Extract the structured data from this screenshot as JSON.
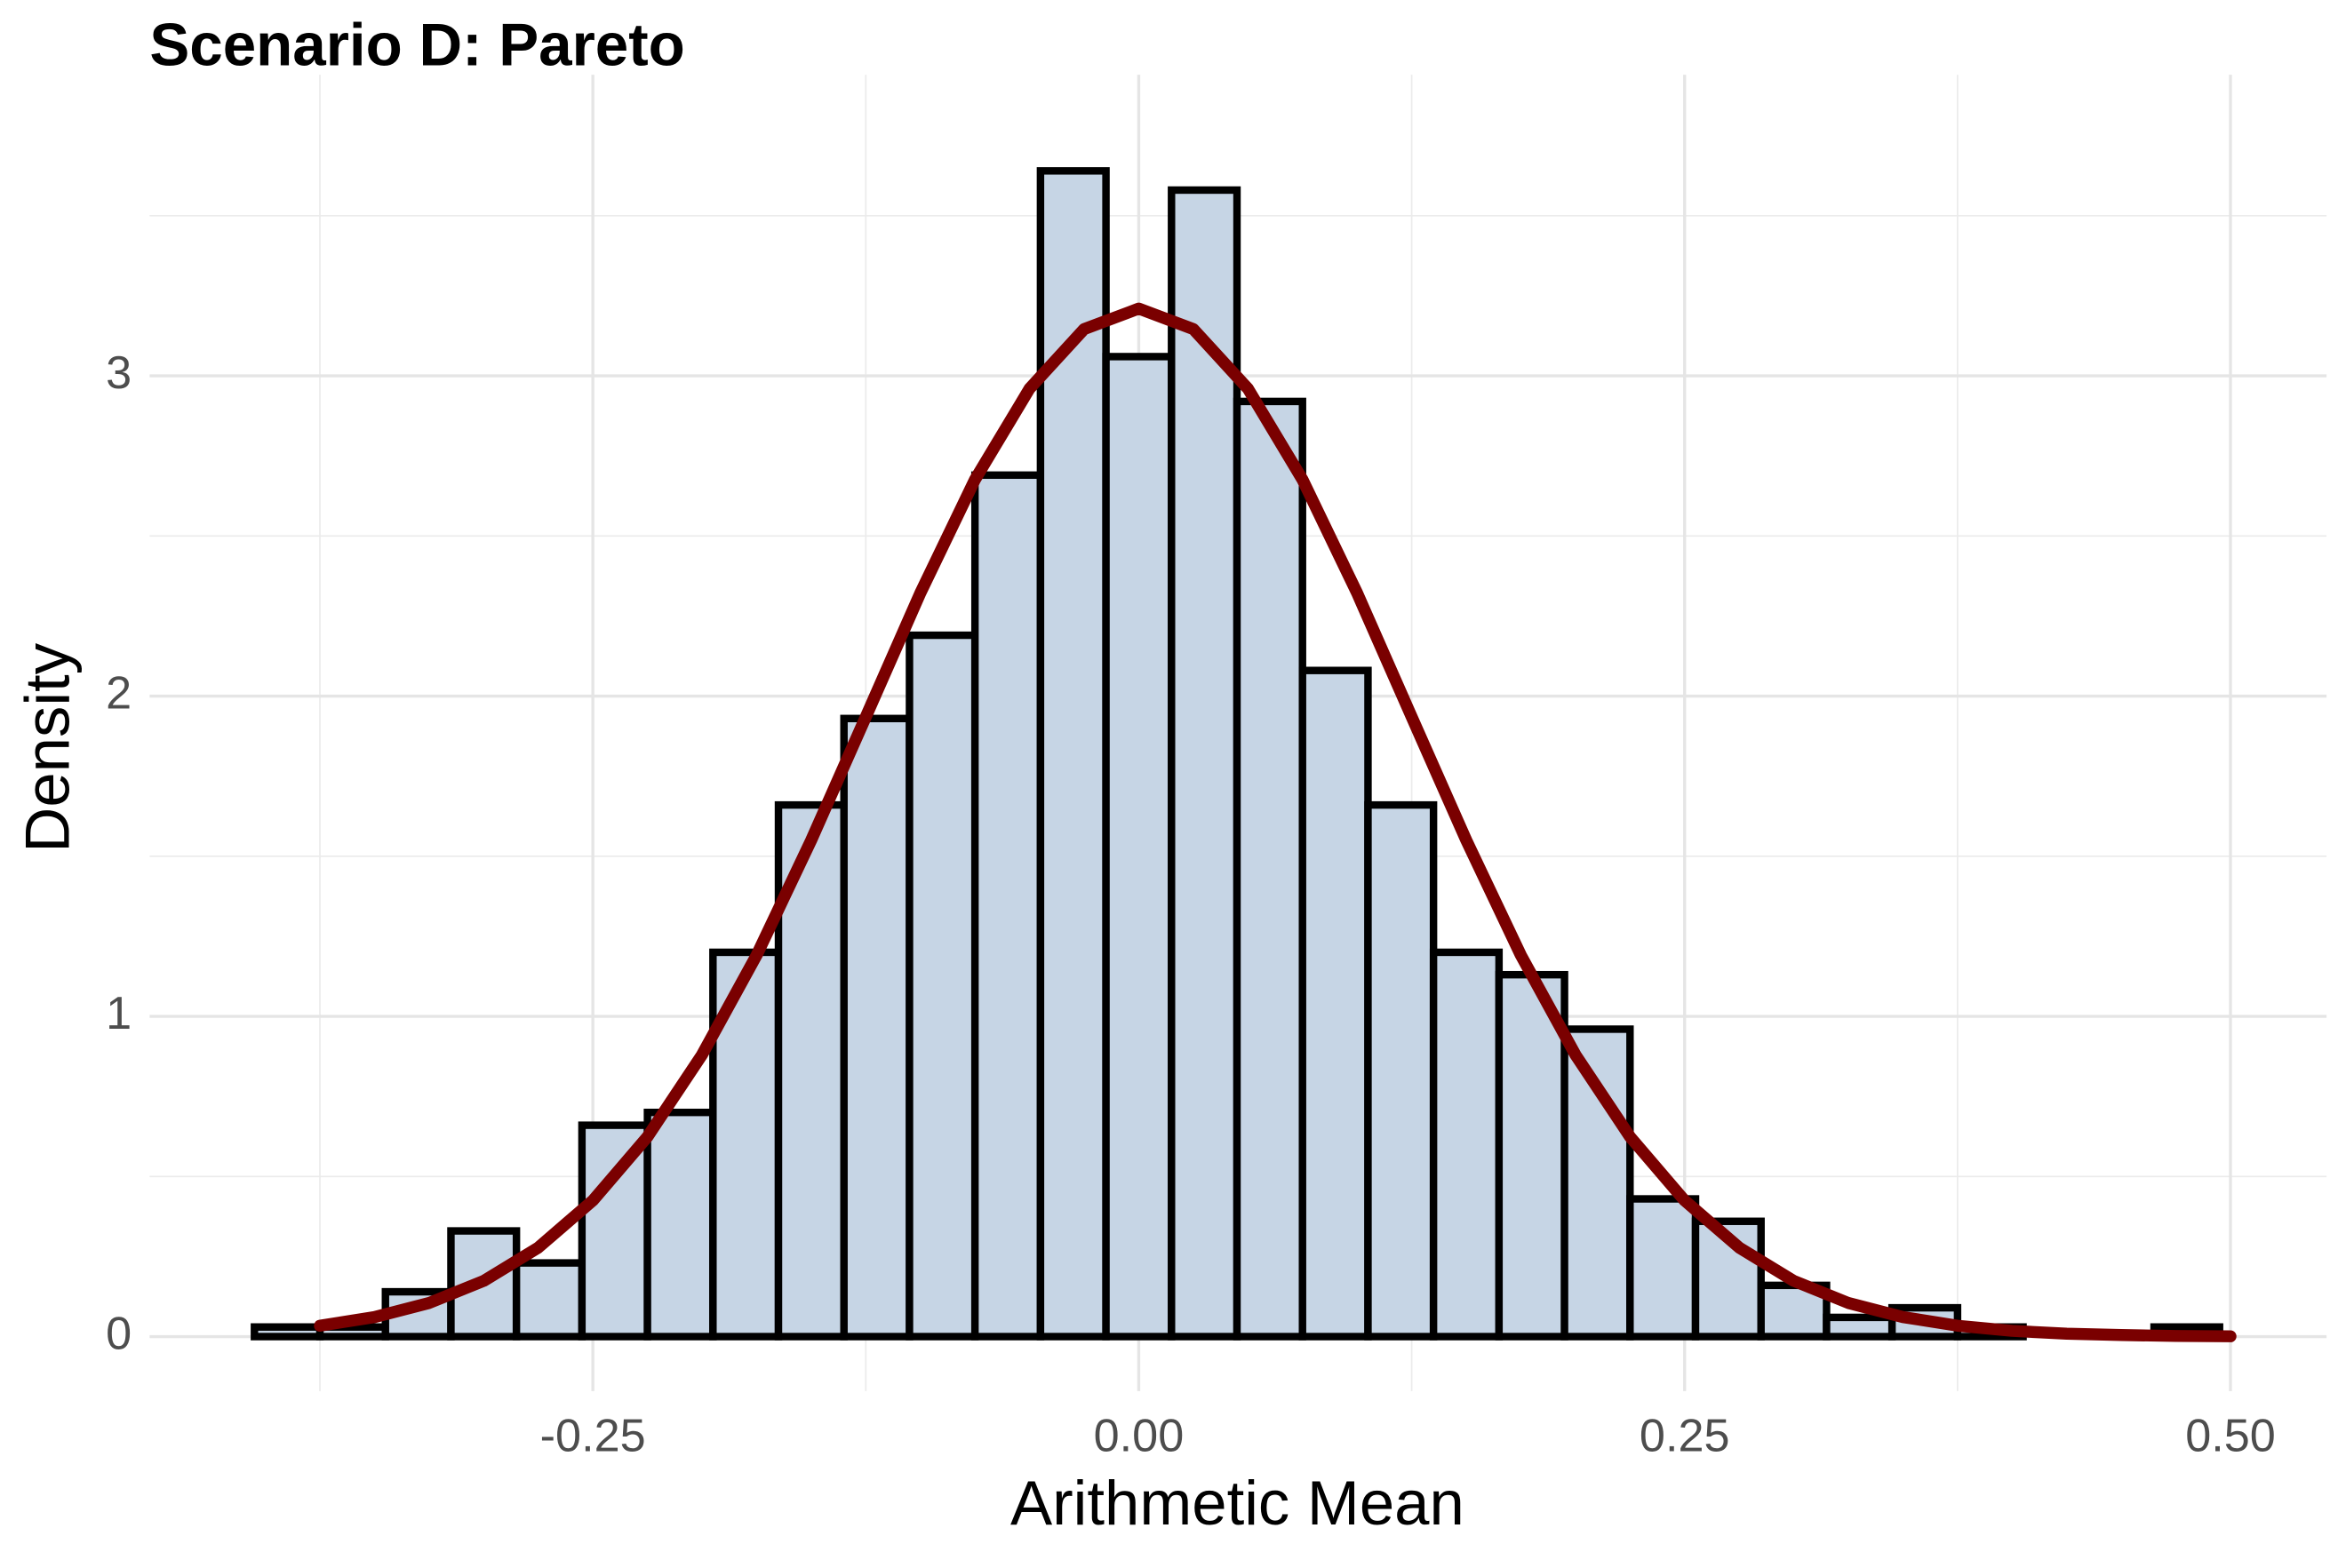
{
  "chart_data": {
    "type": "histogram",
    "title": "Scenario D: Pareto",
    "xlabel": "Arithmetic Mean",
    "ylabel": "Density",
    "bins": [
      -0.405,
      -0.375,
      -0.345,
      -0.315,
      -0.285,
      -0.255,
      -0.225,
      -0.195,
      -0.165,
      -0.135,
      -0.105,
      -0.075,
      -0.045,
      -0.015,
      0.015,
      0.045,
      0.075,
      0.105,
      0.135,
      0.165,
      0.195,
      0.225,
      0.255,
      0.285,
      0.315,
      0.345,
      0.375,
      0.405,
      0.435,
      0.465,
      0.495
    ],
    "values": [
      0.03,
      0.03,
      0.14,
      0.33,
      0.23,
      0.66,
      0.7,
      1.2,
      1.66,
      1.93,
      2.19,
      2.69,
      3.64,
      3.06,
      3.58,
      2.92,
      2.08,
      1.66,
      1.2,
      1.13,
      0.96,
      0.43,
      0.36,
      0.16,
      0.06,
      0.09,
      0.03,
      0,
      0,
      0.03
    ],
    "color": "#c6d5e5",
    "edgecolor": "#000000",
    "curve": {
      "color": "#7a0000",
      "x": [
        -0.375,
        -0.35,
        -0.325,
        -0.3,
        -0.275,
        -0.25,
        -0.225,
        -0.2,
        -0.175,
        -0.15,
        -0.125,
        -0.1,
        -0.075,
        -0.05,
        -0.025,
        0,
        0.025,
        0.05,
        0.075,
        0.1,
        0.125,
        0.15,
        0.175,
        0.2,
        0.225,
        0.25,
        0.275,
        0.3,
        0.325,
        0.35,
        0.375,
        0.4,
        0.425,
        0.45,
        0.475,
        0.5
      ],
      "values": [
        0.034,
        0.061,
        0.105,
        0.174,
        0.278,
        0.425,
        0.624,
        0.88,
        1.191,
        1.55,
        1.935,
        2.322,
        2.676,
        2.96,
        3.146,
        3.21,
        3.146,
        2.96,
        2.676,
        2.322,
        1.935,
        1.55,
        1.191,
        0.88,
        0.624,
        0.425,
        0.278,
        0.174,
        0.105,
        0.061,
        0.034,
        0.018,
        0.009,
        0.005,
        0.002,
        0.001
      ]
    },
    "xlim": [
      -0.453,
      0.544
    ],
    "ylim": [
      -0.17,
      3.94
    ],
    "xticks": [
      {
        "value": -0.25,
        "label": "-0.25"
      },
      {
        "value": 0,
        "label": "0.00"
      },
      {
        "value": 0.25,
        "label": "0.25"
      },
      {
        "value": 0.5,
        "label": "0.50"
      }
    ],
    "xminor": [
      -0.375,
      -0.125,
      0.125,
      0.375
    ],
    "yticks": [
      0,
      1,
      2,
      3
    ],
    "yminor": [
      0.5,
      1.5,
      2.5,
      3.5
    ],
    "grid": true
  }
}
